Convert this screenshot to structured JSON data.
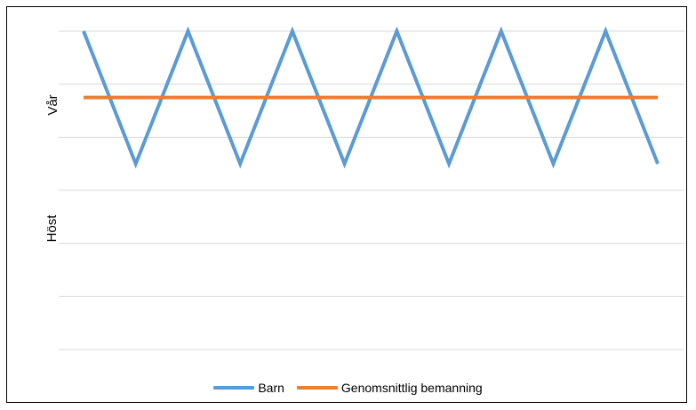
{
  "chart_data": {
    "type": "line",
    "title": "",
    "xlabel": "",
    "ylabel": "",
    "y_tick_labels": [
      "Vår",
      "Höst"
    ],
    "ylim": [
      0,
      6
    ],
    "grid": true,
    "legend_position": "bottom",
    "x": [
      0,
      1,
      2,
      3,
      4,
      5,
      6,
      7,
      8,
      9,
      10,
      11
    ],
    "series": [
      {
        "name": "Barn",
        "color": "#5b9bd5",
        "values": [
          6,
          3.5,
          6,
          3.5,
          6,
          3.5,
          6,
          3.5,
          6,
          3.5,
          6,
          3.5
        ]
      },
      {
        "name": "Genomsnittlig bemanning",
        "color": "#ed7d31",
        "values": [
          4.75,
          4.75,
          4.75,
          4.75,
          4.75,
          4.75,
          4.75,
          4.75,
          4.75,
          4.75,
          4.75,
          4.75
        ]
      }
    ]
  }
}
